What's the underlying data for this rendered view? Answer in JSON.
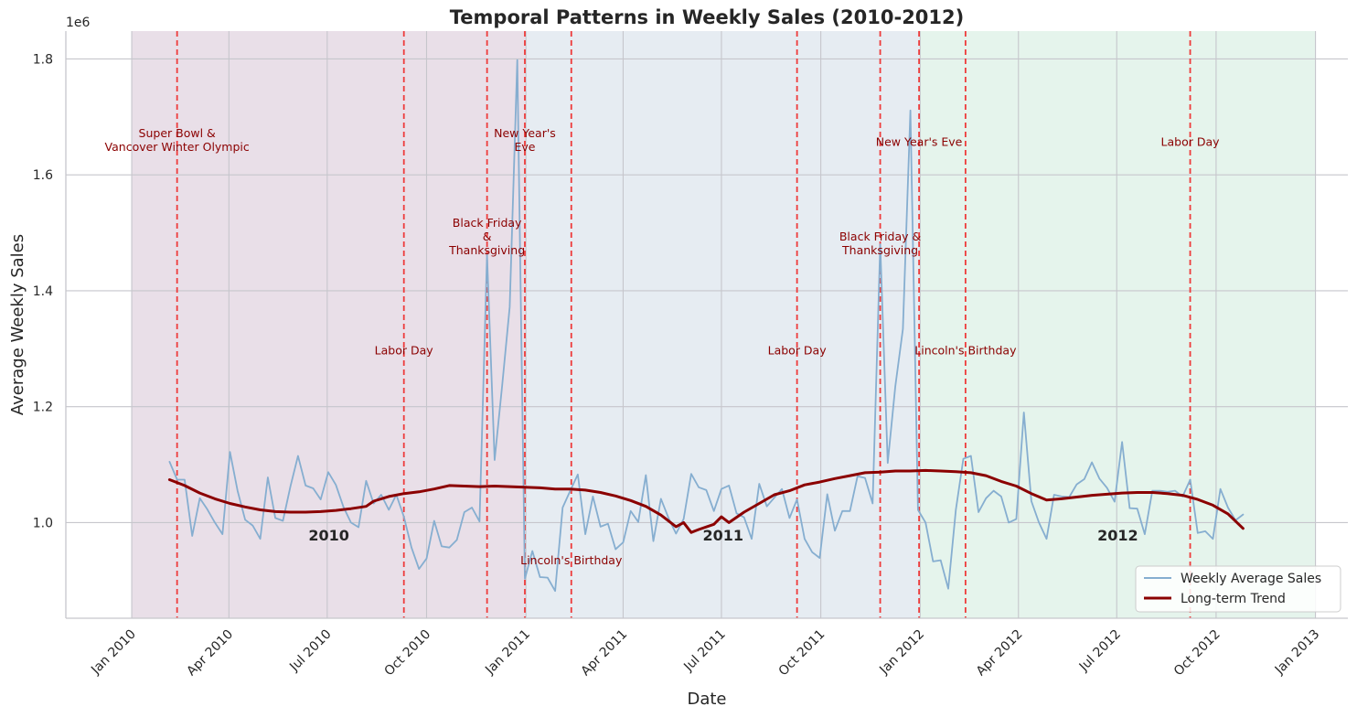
{
  "chart_data": {
    "type": "line",
    "title": "Temporal Patterns in Weekly Sales (2010-2012)",
    "xlabel": "Date",
    "ylabel": "Average Weekly Sales",
    "y_scale_label": "1e6",
    "xlim": [
      "2009-11-01",
      "2013-01-31"
    ],
    "ylim": [
      0.835,
      1.848
    ],
    "x_ticks": [
      {
        "date": "2010-01-01",
        "label": "Jan 2010"
      },
      {
        "date": "2010-04-01",
        "label": "Apr 2010"
      },
      {
        "date": "2010-07-01",
        "label": "Jul 2010"
      },
      {
        "date": "2010-10-01",
        "label": "Oct 2010"
      },
      {
        "date": "2011-01-01",
        "label": "Jan 2011"
      },
      {
        "date": "2011-04-01",
        "label": "Apr 2011"
      },
      {
        "date": "2011-07-01",
        "label": "Jul 2011"
      },
      {
        "date": "2011-10-01",
        "label": "Oct 2011"
      },
      {
        "date": "2012-01-01",
        "label": "Jan 2012"
      },
      {
        "date": "2012-04-01",
        "label": "Apr 2012"
      },
      {
        "date": "2012-07-01",
        "label": "Jul 2012"
      },
      {
        "date": "2012-10-01",
        "label": "Oct 2012"
      },
      {
        "date": "2013-01-01",
        "label": "Jan 2013"
      }
    ],
    "y_ticks": [
      {
        "value": 1.0,
        "label": "1.0"
      },
      {
        "value": 1.2,
        "label": "1.2"
      },
      {
        "value": 1.4,
        "label": "1.4"
      },
      {
        "value": 1.6,
        "label": "1.6"
      },
      {
        "value": 1.8,
        "label": "1.8"
      }
    ],
    "grid": true,
    "legend_position": "lower-right",
    "year_bands": [
      {
        "label": "2010",
        "start": "2010-01-01",
        "end": "2011-01-01",
        "color": "#e9dfe8"
      },
      {
        "label": "2011",
        "start": "2011-01-01",
        "end": "2012-01-01",
        "color": "#e6ecf2"
      },
      {
        "label": "2012",
        "start": "2012-01-01",
        "end": "2013-01-01",
        "color": "#e5f4ec"
      }
    ],
    "events": [
      {
        "date": "2010-02-12",
        "label": "Super Bowl &\nVancover Winter Olympic",
        "label_y": 1.665
      },
      {
        "date": "2010-09-10",
        "label": "Labor Day",
        "label_y": 1.29
      },
      {
        "date": "2010-11-26",
        "label": "Black Friday\n&\nThanksgiving",
        "label_y": 1.51
      },
      {
        "date": "2010-12-31",
        "label": "New Year's\nEve",
        "label_y": 1.665
      },
      {
        "date": "2011-02-12",
        "label": "Lincoln's Birthday",
        "label_y": 0.928
      },
      {
        "date": "2011-09-09",
        "label": "Labor Day",
        "label_y": 1.29
      },
      {
        "date": "2011-11-25",
        "label": "Black Friday &\nThanksgiving",
        "label_y": 1.487
      },
      {
        "date": "2011-12-31",
        "label": "New Year's Eve",
        "label_y": 1.65
      },
      {
        "date": "2012-02-12",
        "label": "Lincoln's Birthday",
        "label_y": 1.29
      },
      {
        "date": "2012-09-07",
        "label": "Labor Day",
        "label_y": 1.65
      }
    ],
    "series": [
      {
        "name": "Weekly Average Sales",
        "color": "#86aed0",
        "x": [
          "2010-02-05",
          "2010-02-12",
          "2010-02-19",
          "2010-02-26",
          "2010-03-05",
          "2010-03-12",
          "2010-03-19",
          "2010-03-26",
          "2010-04-02",
          "2010-04-09",
          "2010-04-16",
          "2010-04-23",
          "2010-04-30",
          "2010-05-07",
          "2010-05-14",
          "2010-05-21",
          "2010-05-28",
          "2010-06-04",
          "2010-06-11",
          "2010-06-18",
          "2010-06-25",
          "2010-07-02",
          "2010-07-09",
          "2010-07-16",
          "2010-07-23",
          "2010-07-30",
          "2010-08-06",
          "2010-08-13",
          "2010-08-20",
          "2010-08-27",
          "2010-09-03",
          "2010-09-10",
          "2010-09-17",
          "2010-09-24",
          "2010-10-01",
          "2010-10-08",
          "2010-10-15",
          "2010-10-22",
          "2010-10-29",
          "2010-11-05",
          "2010-11-12",
          "2010-11-19",
          "2010-11-26",
          "2010-12-03",
          "2010-12-10",
          "2010-12-17",
          "2010-12-24",
          "2010-12-31",
          "2011-01-07",
          "2011-01-14",
          "2011-01-21",
          "2011-01-28",
          "2011-02-04",
          "2011-02-11",
          "2011-02-18",
          "2011-02-25",
          "2011-03-04",
          "2011-03-11",
          "2011-03-18",
          "2011-03-25",
          "2011-04-01",
          "2011-04-08",
          "2011-04-15",
          "2011-04-22",
          "2011-04-29",
          "2011-05-06",
          "2011-05-13",
          "2011-05-20",
          "2011-05-27",
          "2011-06-03",
          "2011-06-10",
          "2011-06-17",
          "2011-06-24",
          "2011-07-01",
          "2011-07-08",
          "2011-07-15",
          "2011-07-22",
          "2011-07-29",
          "2011-08-05",
          "2011-08-12",
          "2011-08-19",
          "2011-08-26",
          "2011-09-02",
          "2011-09-09",
          "2011-09-16",
          "2011-09-23",
          "2011-09-30",
          "2011-10-07",
          "2011-10-14",
          "2011-10-21",
          "2011-10-28",
          "2011-11-04",
          "2011-11-11",
          "2011-11-18",
          "2011-11-25",
          "2011-12-02",
          "2011-12-09",
          "2011-12-16",
          "2011-12-23",
          "2011-12-30",
          "2012-01-06",
          "2012-01-13",
          "2012-01-20",
          "2012-01-27",
          "2012-02-03",
          "2012-02-10",
          "2012-02-17",
          "2012-02-24",
          "2012-03-02",
          "2012-03-09",
          "2012-03-16",
          "2012-03-23",
          "2012-03-30",
          "2012-04-06",
          "2012-04-13",
          "2012-04-20",
          "2012-04-27",
          "2012-05-04",
          "2012-05-11",
          "2012-05-18",
          "2012-05-25",
          "2012-06-01",
          "2012-06-08",
          "2012-06-15",
          "2012-06-22",
          "2012-06-29",
          "2012-07-06",
          "2012-07-13",
          "2012-07-20",
          "2012-07-27",
          "2012-08-03",
          "2012-08-10",
          "2012-08-17",
          "2012-08-24",
          "2012-08-31",
          "2012-09-07",
          "2012-09-14",
          "2012-09-21",
          "2012-09-28",
          "2012-10-05",
          "2012-10-12",
          "2012-10-19",
          "2012-10-26"
        ],
        "values": [
          1.105,
          1.074,
          1.074,
          0.977,
          1.042,
          1.023,
          1.0,
          0.98,
          1.122,
          1.055,
          1.005,
          0.995,
          0.972,
          1.078,
          1.008,
          1.003,
          1.063,
          1.115,
          1.064,
          1.059,
          1.04,
          1.087,
          1.065,
          1.027,
          1.0,
          0.992,
          1.072,
          1.033,
          1.048,
          1.022,
          1.048,
          1.01,
          0.957,
          0.92,
          0.938,
          1.003,
          0.959,
          0.957,
          0.97,
          1.018,
          1.026,
          1.002,
          1.462,
          1.108,
          1.237,
          1.372,
          1.798,
          0.903,
          0.951,
          0.906,
          0.905,
          0.882,
          1.026,
          1.055,
          1.083,
          0.98,
          1.045,
          0.993,
          0.998,
          0.954,
          0.966,
          1.02,
          1.001,
          1.082,
          0.968,
          1.041,
          1.008,
          0.981,
          1.006,
          1.084,
          1.061,
          1.056,
          1.02,
          1.058,
          1.064,
          1.016,
          1.009,
          0.972,
          1.067,
          1.028,
          1.043,
          1.058,
          1.008,
          1.04,
          0.972,
          0.949,
          0.939,
          1.049,
          0.986,
          1.02,
          1.02,
          1.08,
          1.077,
          1.033,
          1.48,
          1.103,
          1.235,
          1.334,
          1.711,
          1.022,
          1.0,
          0.933,
          0.935,
          0.886,
          1.022,
          1.11,
          1.115,
          1.018,
          1.042,
          1.055,
          1.045,
          1.0,
          1.006,
          1.19,
          1.037,
          1.0,
          0.972,
          1.048,
          1.045,
          1.044,
          1.066,
          1.075,
          1.104,
          1.076,
          1.06,
          1.036,
          1.139,
          1.025,
          1.024,
          0.98,
          1.055,
          1.055,
          1.053,
          1.055,
          1.045,
          1.074,
          0.982,
          0.985,
          0.972,
          1.058,
          1.026,
          1.004,
          1.014
        ]
      },
      {
        "name": "Long-term Trend",
        "color": "#8b0000",
        "x": [
          "2010-02-05",
          "2010-02-19",
          "2010-03-05",
          "2010-03-19",
          "2010-04-02",
          "2010-04-16",
          "2010-04-30",
          "2010-05-14",
          "2010-05-28",
          "2010-06-11",
          "2010-06-25",
          "2010-07-09",
          "2010-07-23",
          "2010-08-06",
          "2010-08-13",
          "2010-08-27",
          "2010-09-10",
          "2010-09-24",
          "2010-10-08",
          "2010-10-22",
          "2010-11-05",
          "2010-11-19",
          "2010-12-03",
          "2010-12-17",
          "2010-12-31",
          "2011-01-14",
          "2011-01-28",
          "2011-02-11",
          "2011-02-25",
          "2011-03-11",
          "2011-03-25",
          "2011-04-08",
          "2011-04-22",
          "2011-05-06",
          "2011-05-20",
          "2011-05-27",
          "2011-06-03",
          "2011-06-10",
          "2011-06-24",
          "2011-07-01",
          "2011-07-08",
          "2011-07-22",
          "2011-08-05",
          "2011-08-19",
          "2011-09-02",
          "2011-09-16",
          "2011-09-30",
          "2011-10-14",
          "2011-10-28",
          "2011-11-11",
          "2011-11-25",
          "2011-12-09",
          "2011-12-23",
          "2012-01-06",
          "2012-01-20",
          "2012-02-03",
          "2012-02-17",
          "2012-03-02",
          "2012-03-16",
          "2012-03-30",
          "2012-04-13",
          "2012-04-27",
          "2012-05-11",
          "2012-05-25",
          "2012-06-08",
          "2012-06-22",
          "2012-07-06",
          "2012-07-20",
          "2012-08-03",
          "2012-08-17",
          "2012-08-31",
          "2012-09-14",
          "2012-09-28",
          "2012-10-12",
          "2012-10-26"
        ],
        "values": [
          1.074,
          1.064,
          1.051,
          1.041,
          1.033,
          1.027,
          1.022,
          1.019,
          1.018,
          1.018,
          1.019,
          1.021,
          1.024,
          1.028,
          1.037,
          1.045,
          1.05,
          1.053,
          1.058,
          1.064,
          1.063,
          1.062,
          1.063,
          1.062,
          1.061,
          1.06,
          1.058,
          1.058,
          1.056,
          1.052,
          1.046,
          1.038,
          1.028,
          1.013,
          0.993,
          1.0,
          0.983,
          0.988,
          0.997,
          1.01,
          1.0,
          1.018,
          1.033,
          1.048,
          1.055,
          1.065,
          1.07,
          1.076,
          1.081,
          1.086,
          1.087,
          1.089,
          1.089,
          1.09,
          1.089,
          1.088,
          1.086,
          1.081,
          1.071,
          1.063,
          1.05,
          1.039,
          1.041,
          1.044,
          1.047,
          1.049,
          1.051,
          1.052,
          1.052,
          1.05,
          1.047,
          1.04,
          1.03,
          1.015,
          0.99
        ]
      }
    ],
    "legend": [
      {
        "label": "Weekly Average Sales"
      },
      {
        "label": "Long-term Trend"
      }
    ],
    "colors": {
      "event_line": "#ee3b3b",
      "grid": "#c6c6cc",
      "axis": "#c6c6cc"
    }
  }
}
